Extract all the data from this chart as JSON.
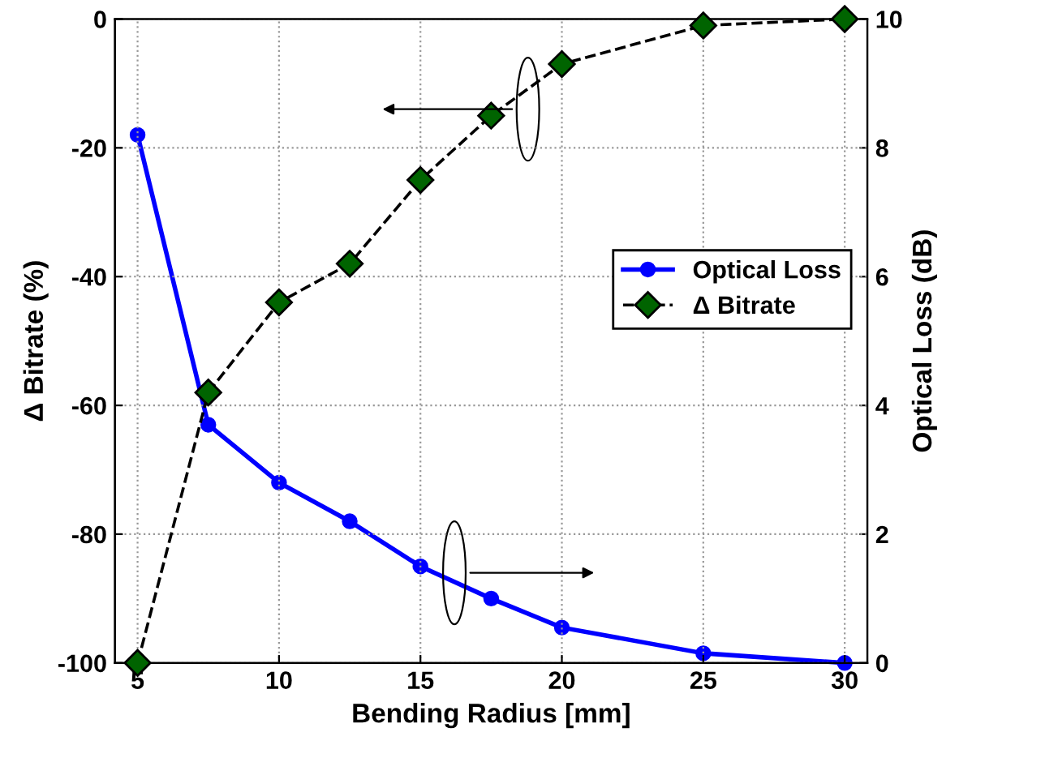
{
  "chart_data": {
    "type": "line",
    "xlabel": "Bending Radius [mm]",
    "ylabel": "Δ Bitrate (%)",
    "y2label": "Optical Loss (dB)",
    "x": [
      5,
      7.5,
      10,
      12.5,
      15,
      17.5,
      20,
      25,
      30
    ],
    "xlim": [
      4.2,
      30.8
    ],
    "xticks": [
      5,
      10,
      15,
      20,
      25,
      30
    ],
    "ylim": [
      -100,
      0
    ],
    "yticks": [
      -100,
      -80,
      -60,
      -40,
      -20,
      0
    ],
    "y2lim": [
      0,
      10
    ],
    "y2ticks": [
      0,
      2,
      4,
      6,
      8,
      10
    ],
    "grid": true,
    "legend": "right",
    "series": [
      {
        "name": "Optical Loss",
        "color": "#0000ff",
        "axis": "y2",
        "marker": "circle",
        "line_style": "solid",
        "values": [
          8.2,
          3.7,
          2.8,
          2.2,
          1.5,
          1.0,
          0.55,
          0.15,
          0
        ]
      },
      {
        "name": "Δ Bitrate",
        "color": "#006400",
        "axis": "y",
        "marker": "diamond",
        "line_style": "dashed",
        "values": [
          -100,
          -58,
          -44,
          -38,
          -25,
          -15,
          -7,
          -1,
          0
        ]
      }
    ]
  }
}
